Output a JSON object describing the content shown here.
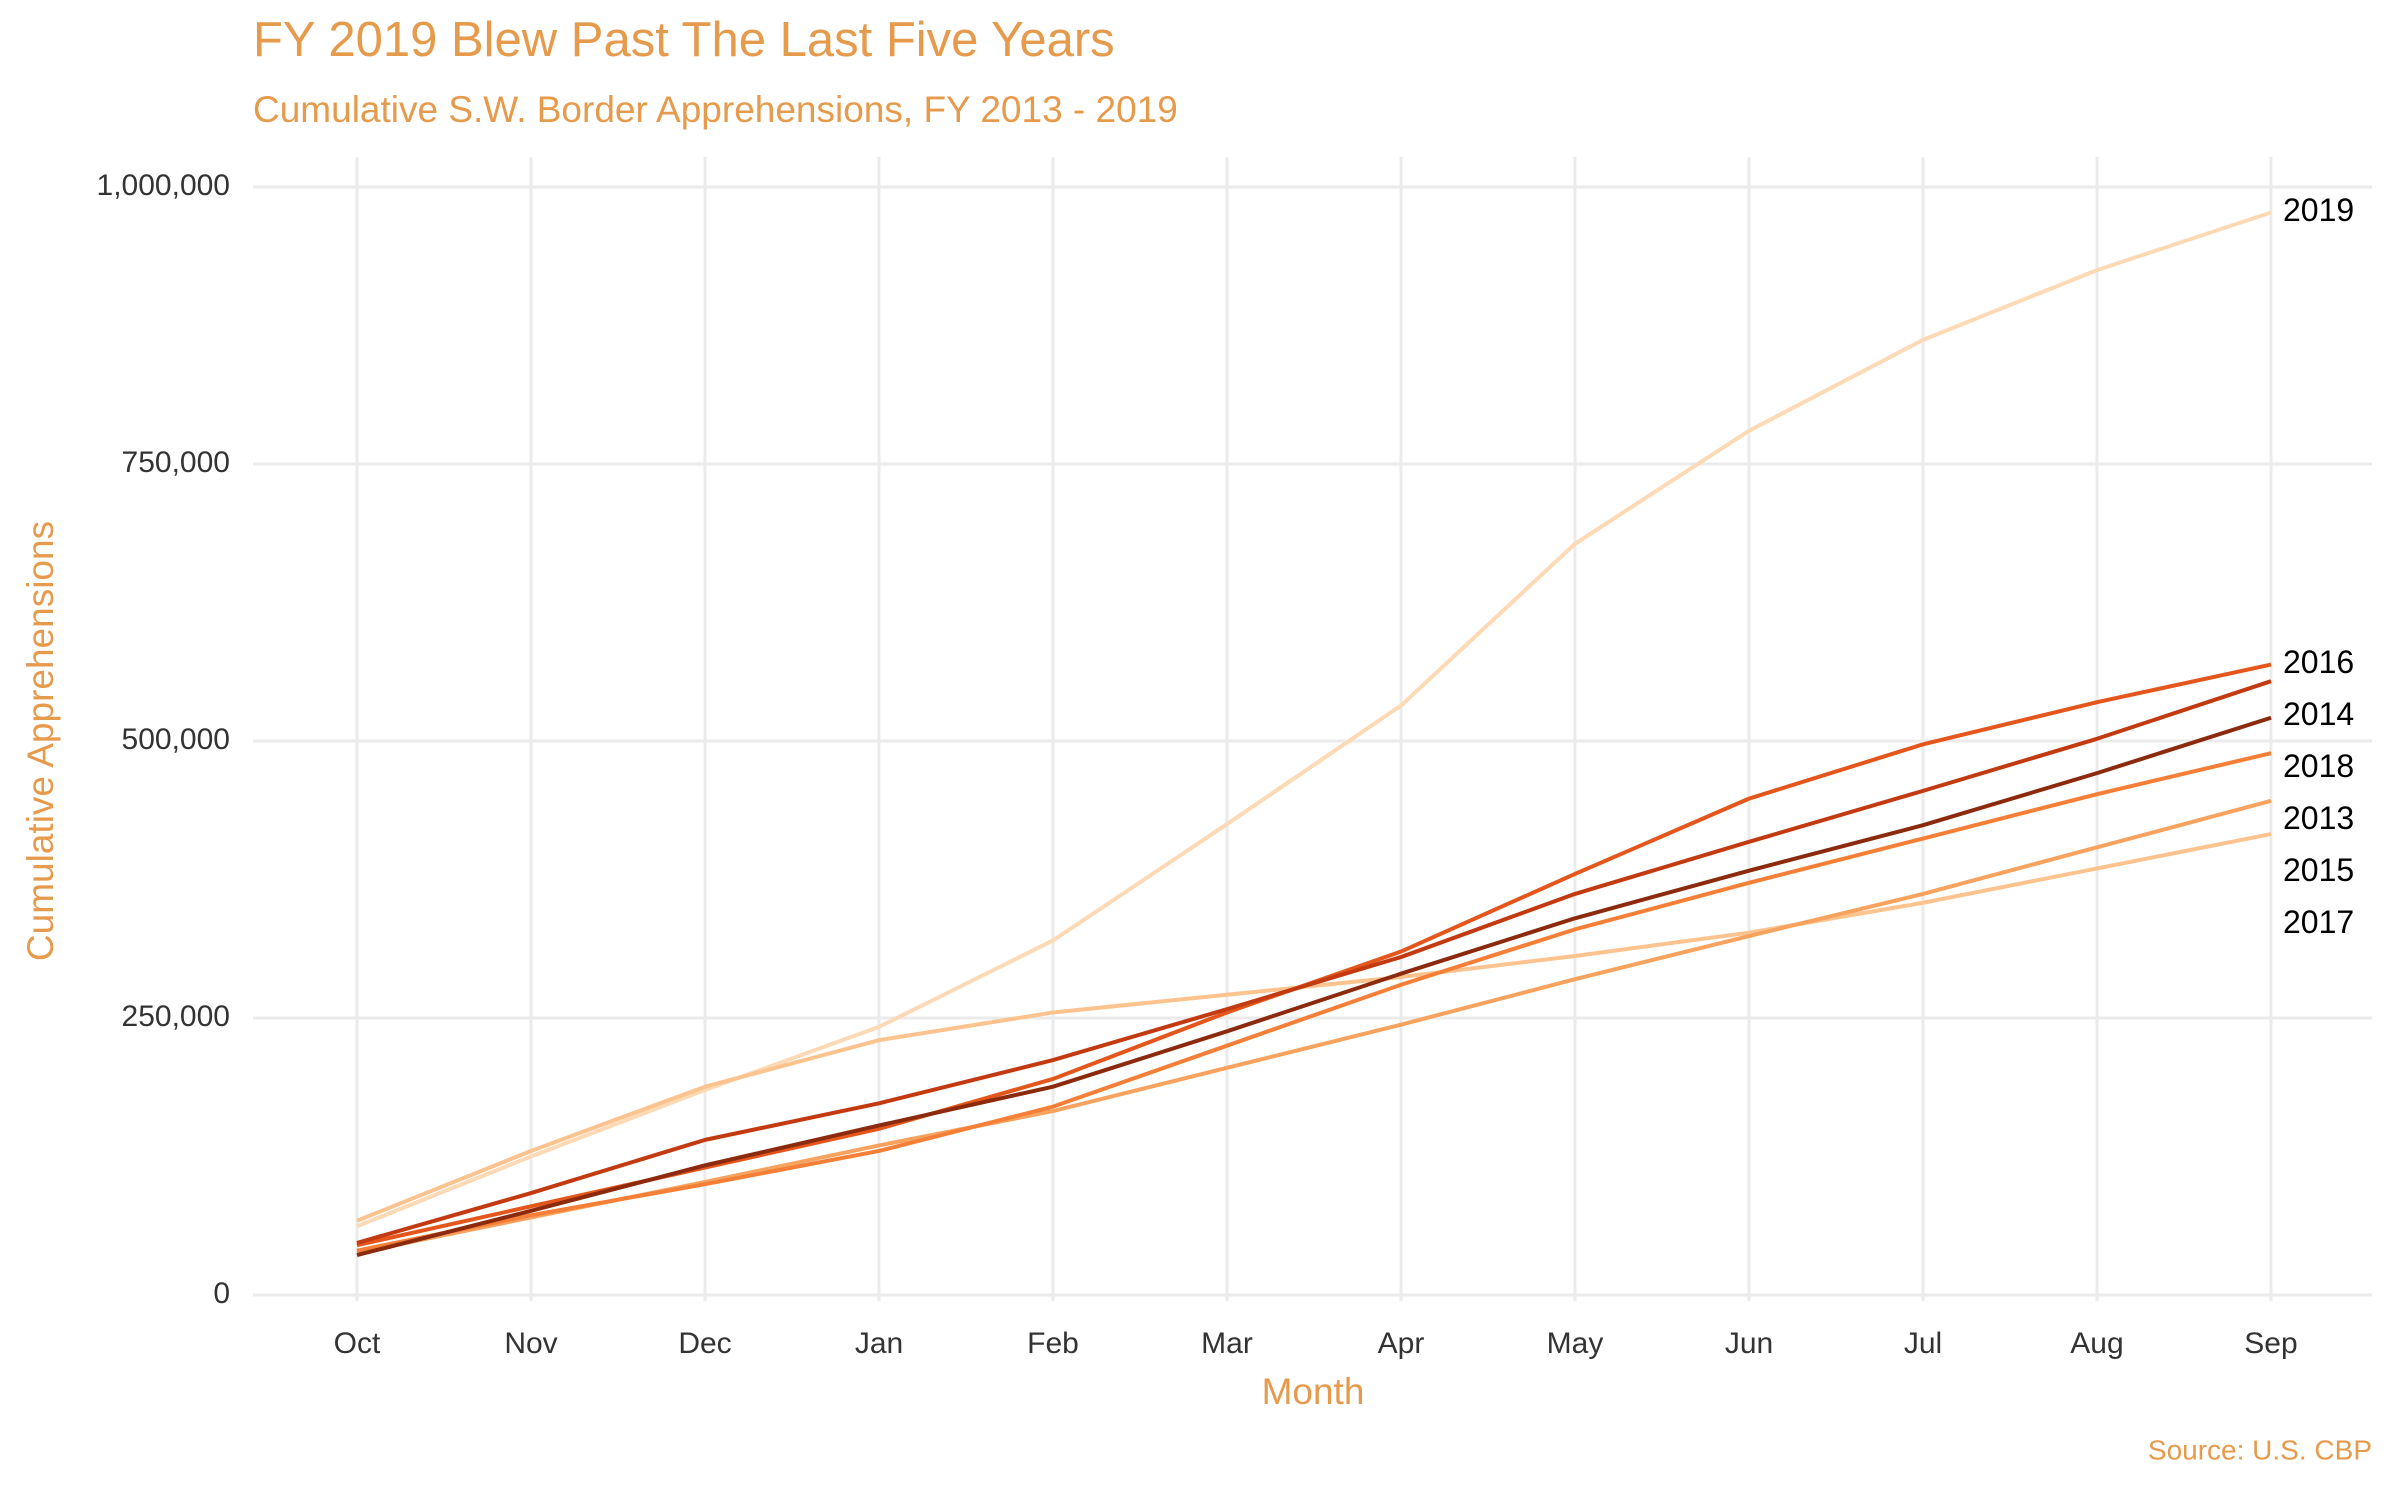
{
  "chart_data": {
    "type": "line",
    "title": "FY 2019 Blew Past The Last Five Years",
    "subtitle": "Cumulative S.W. Border Apprehensions, FY 2013 - 2019",
    "x_label": "Month",
    "y_label": "Cumulative Apprehensions",
    "source": "Source: U.S. CBP",
    "categories": [
      "Oct",
      "Nov",
      "Dec",
      "Jan",
      "Feb",
      "Mar",
      "Apr",
      "May",
      "Jun",
      "Jul",
      "Aug",
      "Sep"
    ],
    "ylim": [
      0,
      1000000
    ],
    "yticks": [
      0,
      {
        "value": 250000,
        "label": "250,000"
      },
      {
        "value": 500000,
        "label": "500,000"
      },
      {
        "value": 750000,
        "label": "750,000"
      },
      {
        "value": 1000000,
        "label": "1,000,000"
      }
    ],
    "grid": true,
    "series": [
      {
        "name": "2019",
        "color": "#fdd9b5",
        "values": [
          62000,
          125000,
          185000,
          242000,
          320000,
          425000,
          532000,
          678000,
          780000,
          862000,
          925000,
          977000
        ]
      },
      {
        "name": "2017",
        "color": "#fcc38f",
        "values": [
          67000,
          130000,
          188000,
          230000,
          255000,
          271000,
          287000,
          306000,
          327000,
          354000,
          385000,
          416000
        ]
      },
      {
        "name": "2015",
        "color": "#f7a35f",
        "values": [
          38000,
          70000,
          102000,
          135000,
          166000,
          205000,
          244000,
          285000,
          324000,
          362000,
          404000,
          446000
        ]
      },
      {
        "name": "2013",
        "color": "#f57f36",
        "values": [
          40000,
          72000,
          100000,
          130000,
          170000,
          225000,
          280000,
          330000,
          372000,
          412000,
          452000,
          489000
        ]
      },
      {
        "name": "2016",
        "color": "#e4561b",
        "values": [
          45000,
          80000,
          115000,
          150000,
          195000,
          255000,
          310000,
          380000,
          448000,
          497000,
          535000,
          569000
        ]
      },
      {
        "name": "2014",
        "color": "#c43a10",
        "values": [
          47000,
          92000,
          140000,
          173000,
          212000,
          258000,
          305000,
          362000,
          409000,
          455000,
          502000,
          554000
        ]
      },
      {
        "name": "2018",
        "color": "#8c2a0d",
        "values": [
          36000,
          76000,
          117000,
          153000,
          188000,
          238000,
          290000,
          340000,
          383000,
          424000,
          471000,
          521000
        ]
      }
    ]
  }
}
